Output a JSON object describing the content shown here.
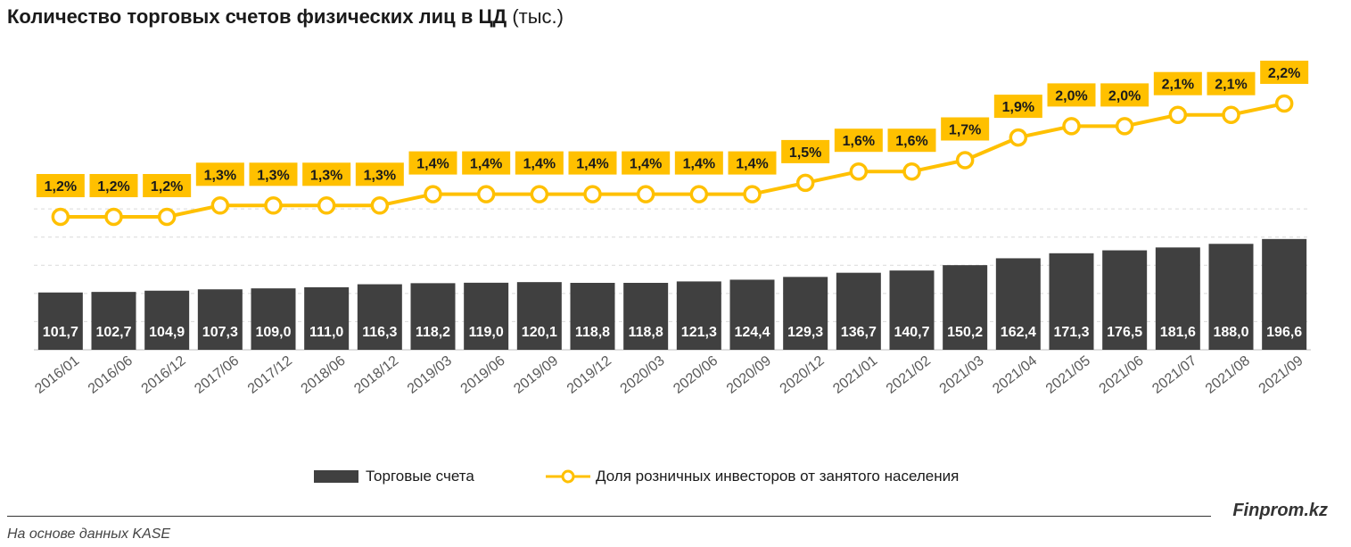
{
  "title": {
    "bold": "Количество торговых счетов физических лиц в ЦД",
    "light": "(тыс.)"
  },
  "chart_data": {
    "type": "bar",
    "title": "Количество торговых счетов физических лиц в ЦД (тыс.)",
    "categories": [
      "2016/01",
      "2016/06",
      "2016/12",
      "2017/06",
      "2017/12",
      "2018/06",
      "2018/12",
      "2019/03",
      "2019/06",
      "2019/09",
      "2019/12",
      "2020/03",
      "2020/06",
      "2020/09",
      "2020/12",
      "2021/01",
      "2021/02",
      "2021/03",
      "2021/04",
      "2021/05",
      "2021/06",
      "2021/07",
      "2021/08",
      "2021/09"
    ],
    "series": [
      {
        "name": "Торговые счета",
        "type": "bar",
        "values": [
          101.7,
          102.7,
          104.9,
          107.3,
          109.0,
          111.0,
          116.3,
          118.2,
          119.0,
          120.1,
          118.8,
          118.8,
          121.3,
          124.4,
          129.3,
          136.7,
          140.7,
          150.2,
          162.4,
          171.3,
          176.5,
          181.6,
          188.0,
          196.6
        ],
        "labels": [
          "101,7",
          "102,7",
          "104,9",
          "107,3",
          "109,0",
          "111,0",
          "116,3",
          "118,2",
          "119,0",
          "120,1",
          "118,8",
          "118,8",
          "121,3",
          "124,4",
          "129,3",
          "136,7",
          "140,7",
          "150,2",
          "162,4",
          "171,3",
          "176,5",
          "181,6",
          "188,0",
          "196,6"
        ]
      },
      {
        "name": "Доля розничных инвесторов от занятого населения",
        "type": "line",
        "values": [
          1.2,
          1.2,
          1.2,
          1.3,
          1.3,
          1.3,
          1.3,
          1.4,
          1.4,
          1.4,
          1.4,
          1.4,
          1.4,
          1.4,
          1.5,
          1.6,
          1.6,
          1.7,
          1.9,
          2.0,
          2.0,
          2.1,
          2.1,
          2.2
        ],
        "labels": [
          "1,2%",
          "1,2%",
          "1,2%",
          "1,3%",
          "1,3%",
          "1,3%",
          "1,3%",
          "1,4%",
          "1,4%",
          "1,4%",
          "1,4%",
          "1,4%",
          "1,4%",
          "1,4%",
          "1,5%",
          "1,6%",
          "1,6%",
          "1,7%",
          "1,9%",
          "2,0%",
          "2,0%",
          "2,1%",
          "2,1%",
          "2,2%"
        ]
      }
    ],
    "ylim": [
      0,
      250
    ],
    "grid": true,
    "legend": "bottom"
  },
  "colors": {
    "bar": "#404040",
    "line": "#FFC000",
    "grid": "#d9d9d9",
    "label_box": "#FFC000"
  },
  "legend": {
    "bars_label": "Торговые счета",
    "line_label": "Доля розничных инвесторов от занятого населения"
  },
  "footer": {
    "brand": "Finprom.kz",
    "source": "На основе данных KASE"
  }
}
